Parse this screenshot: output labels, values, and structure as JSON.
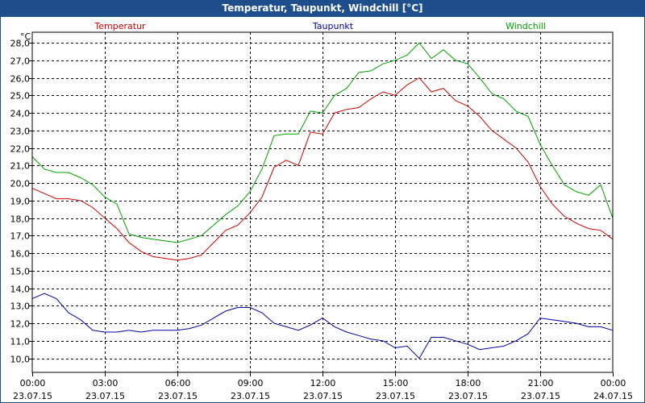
{
  "window": {
    "title": "Temperatur, Taupunkt, Windchill [°C]"
  },
  "chart_data": {
    "type": "line",
    "title": "Temperatur, Taupunkt, Windchill [°C]",
    "ylabel": "°C",
    "xlabel": "",
    "ylim": [
      9.2,
      28.6
    ],
    "xlim": [
      0,
      24
    ],
    "grid": true,
    "yticks": [
      10.0,
      11.0,
      12.0,
      13.0,
      14.0,
      15.0,
      16.0,
      17.0,
      18.0,
      19.0,
      20.0,
      21.0,
      22.0,
      23.0,
      24.0,
      25.0,
      26.0,
      27.0,
      28.0
    ],
    "ytick_labels": [
      "10,0",
      "11,0",
      "12,0",
      "13,0",
      "14,0",
      "15,0",
      "16,0",
      "17,0",
      "18,0",
      "19,0",
      "20,0",
      "21,0",
      "22,0",
      "23,0",
      "24,0",
      "25,0",
      "26,0",
      "27,0",
      "28,0"
    ],
    "xticks": [
      0,
      3,
      6,
      9,
      12,
      15,
      18,
      21,
      24
    ],
    "xtick_times": [
      "00:00",
      "03:00",
      "06:00",
      "09:00",
      "12:00",
      "15:00",
      "18:00",
      "21:00",
      "00:00"
    ],
    "xtick_dates": [
      "23.07.15",
      "23.07.15",
      "23.07.15",
      "23.07.15",
      "23.07.15",
      "23.07.15",
      "23.07.15",
      "23.07.15",
      "24.07.15"
    ],
    "series": [
      {
        "name": "Temperatur",
        "color": "#d40000",
        "x": [
          0,
          0.5,
          1,
          1.5,
          2,
          2.5,
          3,
          3.5,
          4,
          4.5,
          5,
          5.5,
          6,
          6.5,
          7,
          7.5,
          8,
          8.5,
          9,
          9.5,
          10,
          10.5,
          11,
          11.5,
          12,
          12.5,
          13,
          13.5,
          14,
          14.5,
          15,
          15.5,
          16,
          16.5,
          17,
          17.5,
          18,
          18.5,
          19,
          19.5,
          20,
          20.5,
          21,
          21.5,
          22,
          22.5,
          23,
          23.5,
          24
        ],
        "values": [
          19.7,
          19.4,
          19.1,
          19.1,
          19.0,
          18.6,
          18.0,
          17.4,
          16.6,
          16.1,
          15.8,
          15.7,
          15.6,
          15.7,
          15.9,
          16.6,
          17.3,
          17.6,
          18.3,
          19.2,
          20.9,
          21.3,
          21.0,
          22.9,
          22.8,
          24.0,
          24.2,
          24.3,
          24.8,
          25.2,
          25.0,
          25.6,
          26.0,
          25.2,
          25.4,
          24.7,
          24.4,
          23.8,
          23.0,
          22.5,
          22.0,
          21.2,
          19.8,
          18.8,
          18.1,
          17.7,
          17.4,
          17.3,
          16.8
        ]
      },
      {
        "name": "Taupunkt",
        "color": "#0000a8",
        "x": [
          0,
          0.5,
          1,
          1.5,
          2,
          2.5,
          3,
          3.5,
          4,
          4.5,
          5,
          5.5,
          6,
          6.5,
          7,
          7.5,
          8,
          8.5,
          9,
          9.5,
          10,
          10.5,
          11,
          11.5,
          12,
          12.5,
          13,
          13.5,
          14,
          14.5,
          15,
          15.5,
          16,
          16.5,
          17,
          17.5,
          18,
          18.5,
          19,
          19.5,
          20,
          20.5,
          21,
          21.5,
          22,
          22.5,
          23,
          23.5,
          24
        ],
        "values": [
          13.4,
          13.7,
          13.4,
          12.6,
          12.2,
          11.6,
          11.5,
          11.5,
          11.6,
          11.5,
          11.6,
          11.6,
          11.6,
          11.7,
          11.9,
          12.3,
          12.7,
          12.9,
          12.9,
          12.6,
          12.0,
          11.8,
          11.6,
          11.9,
          12.3,
          11.8,
          11.5,
          11.3,
          11.1,
          11.0,
          10.6,
          10.7,
          10.0,
          11.2,
          11.2,
          11.0,
          10.8,
          10.5,
          10.6,
          10.7,
          11.0,
          11.4,
          12.3,
          12.2,
          12.1,
          12.0,
          11.8,
          11.8,
          11.6
        ]
      },
      {
        "name": "Windchill",
        "color": "#00a000",
        "x": [
          0,
          0.5,
          1,
          1.5,
          2,
          2.5,
          3,
          3.5,
          4,
          4.5,
          5,
          5.5,
          6,
          6.5,
          7,
          7.5,
          8,
          8.5,
          9,
          9.5,
          10,
          10.5,
          11,
          11.5,
          12,
          12.5,
          13,
          13.5,
          14,
          14.5,
          15,
          15.5,
          16,
          16.5,
          17,
          17.5,
          18,
          18.5,
          19,
          19.5,
          20,
          20.5,
          21,
          21.5,
          22,
          22.5,
          23,
          23.5,
          24
        ],
        "values": [
          21.5,
          20.8,
          20.6,
          20.6,
          20.3,
          19.9,
          19.2,
          18.8,
          17.1,
          16.9,
          16.8,
          16.7,
          16.6,
          16.8,
          17.0,
          17.6,
          18.2,
          18.7,
          19.5,
          20.8,
          22.7,
          22.8,
          22.8,
          24.1,
          24.0,
          25.0,
          25.4,
          26.3,
          26.4,
          26.8,
          27.0,
          27.3,
          28.0,
          27.1,
          27.6,
          27.0,
          26.8,
          26.0,
          25.1,
          24.8,
          24.1,
          23.8,
          22.2,
          21.0,
          19.9,
          19.5,
          19.3,
          19.9,
          18.0
        ]
      }
    ]
  }
}
